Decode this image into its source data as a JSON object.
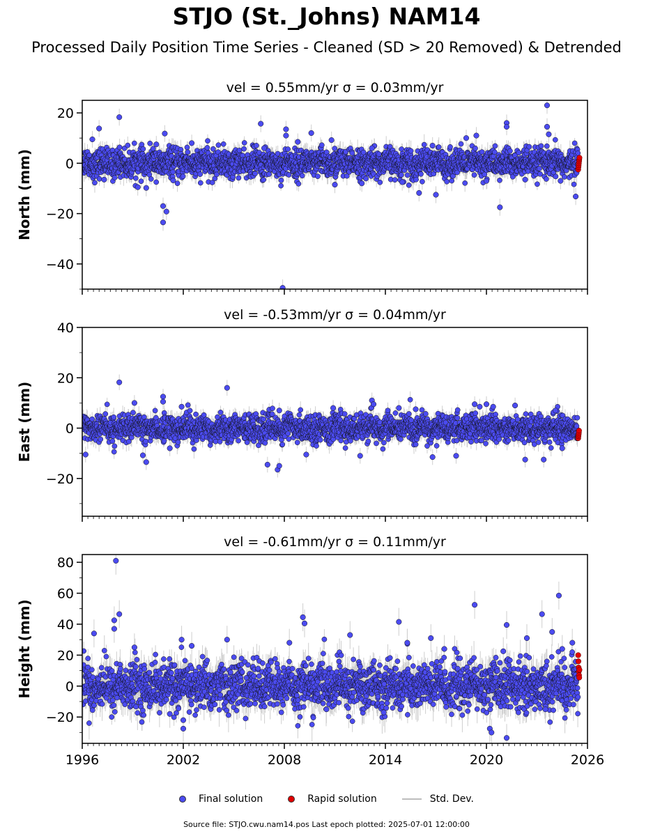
{
  "title": "STJO (St._Johns) NAM14",
  "subtitle": "Processed Daily Position Time Series - Cleaned (SD > 20 Removed) & Detrended",
  "footer": "Source file: STJO.cwu.nam14.pos  Last epoch plotted: 2025-07-01 12:00:00",
  "legend": {
    "final": "Final solution",
    "rapid": "Rapid solution",
    "std": "Std. Dev."
  },
  "colors": {
    "final": "#4b4bf0",
    "rapid": "#e00000",
    "std": "#bdbdbd"
  },
  "chart_data": [
    {
      "type": "scatter",
      "panel": "north",
      "title": "vel = 0.55mm/yr   σ = 0.03mm/yr",
      "ylabel": "North (mm)",
      "xlim": [
        1996,
        2026
      ],
      "ylim": [
        -50,
        25
      ],
      "xticks": [
        1996,
        2002,
        2008,
        2014,
        2020,
        2026
      ],
      "xticklabels": [
        "1996",
        "2002",
        "2008",
        "2014",
        "2020",
        "2026"
      ],
      "yticks": [
        20,
        0,
        -20,
        -40
      ],
      "yticklabels": [
        "20",
        "0",
        "−20",
        "−40"
      ],
      "noise_sd": 2.8,
      "outliers": [
        [
          1996.6,
          9.5
        ],
        [
          1997.0,
          13.8
        ],
        [
          1997.3,
          -6.5
        ],
        [
          1998.2,
          18.3
        ],
        [
          1999.3,
          -9.5
        ],
        [
          1999.8,
          -9.8
        ],
        [
          2000.4,
          7.5
        ],
        [
          2000.8,
          -23.5
        ],
        [
          2000.8,
          -17.0
        ],
        [
          2001.0,
          -19.2
        ],
        [
          2000.9,
          11.8
        ],
        [
          2001.4,
          -6.8
        ],
        [
          2002.5,
          8.0
        ],
        [
          2006.6,
          15.7
        ],
        [
          2006.8,
          6.0
        ],
        [
          2007.9,
          -49.5
        ],
        [
          2008.1,
          11.0
        ],
        [
          2008.1,
          13.5
        ],
        [
          2008.8,
          8.5
        ],
        [
          2009.6,
          12.0
        ],
        [
          2010.8,
          9.2
        ],
        [
          2012.6,
          -8.0
        ],
        [
          2013.2,
          6.0
        ],
        [
          2015.0,
          -7.5
        ],
        [
          2016.0,
          -11.8
        ],
        [
          2016.8,
          7.0
        ],
        [
          2017.0,
          -12.5
        ],
        [
          2019.4,
          11.0
        ],
        [
          2020.0,
          -7.0
        ],
        [
          2020.8,
          -17.5
        ],
        [
          2021.2,
          16.0
        ],
        [
          2021.2,
          14.5
        ],
        [
          2022.3,
          -6.5
        ],
        [
          2023.6,
          23.0
        ],
        [
          2023.6,
          14.5
        ],
        [
          2023.7,
          11.5
        ],
        [
          2024.4,
          -7.0
        ],
        [
          2025.3,
          -13.2
        ],
        [
          2018.8,
          10.0
        ],
        [
          2011.0,
          -8.5
        ]
      ],
      "rapid": [
        -2.5,
        -1.5,
        -0.8,
        0.0,
        0.8,
        1.5,
        2.2
      ]
    },
    {
      "type": "scatter",
      "panel": "east",
      "title": "vel = -0.53mm/yr   σ = 0.04mm/yr",
      "ylabel": "East (mm)",
      "xlim": [
        1996,
        2026
      ],
      "ylim": [
        -35,
        40
      ],
      "xticks": [
        1996,
        2002,
        2008,
        2014,
        2020,
        2026
      ],
      "xticklabels": [
        "1996",
        "2002",
        "2008",
        "2014",
        "2020",
        "2026"
      ],
      "yticks": [
        40,
        20,
        0,
        -20
      ],
      "yticklabels": [
        "40",
        "20",
        "0",
        "−20"
      ],
      "noise_sd": 2.6,
      "outliers": [
        [
          1996.2,
          -10.5
        ],
        [
          1998.2,
          18.2
        ],
        [
          1999.1,
          10.0
        ],
        [
          1999.6,
          -10.8
        ],
        [
          1999.8,
          -13.5
        ],
        [
          2000.8,
          12.5
        ],
        [
          2000.8,
          10.5
        ],
        [
          2001.2,
          -8.0
        ],
        [
          2001.9,
          8.5
        ],
        [
          2004.6,
          16.0
        ],
        [
          2007.0,
          -14.5
        ],
        [
          2007.6,
          -16.5
        ],
        [
          2007.7,
          -15.0
        ],
        [
          2007.7,
          7.0
        ],
        [
          2009.3,
          -10.5
        ],
        [
          2010.9,
          8.0
        ],
        [
          2012.5,
          -11.0
        ],
        [
          2013.2,
          11.0
        ],
        [
          2013.3,
          9.5
        ],
        [
          2014.8,
          8.0
        ],
        [
          2015.8,
          7.5
        ],
        [
          2016.8,
          -11.5
        ],
        [
          2018.2,
          -11.0
        ],
        [
          2019.3,
          9.5
        ],
        [
          2019.6,
          8.5
        ],
        [
          2020.0,
          9.5
        ],
        [
          2020.4,
          8.5
        ],
        [
          2021.7,
          9.0
        ],
        [
          2022.3,
          -12.5
        ],
        [
          2023.4,
          -12.5
        ],
        [
          2024.1,
          7.0
        ],
        [
          2024.5,
          -8.0
        ]
      ],
      "rapid": [
        -4.0,
        -3.2,
        -2.5,
        -1.8,
        -1.0
      ]
    },
    {
      "type": "scatter",
      "panel": "height",
      "title": "vel = -0.61mm/yr   σ = 0.11mm/yr",
      "ylabel": "Height (mm)",
      "xlim": [
        1996,
        2026
      ],
      "ylim": [
        -37,
        85
      ],
      "xticks": [
        1996,
        2002,
        2008,
        2014,
        2020,
        2026
      ],
      "xticklabels": [
        "1996",
        "2002",
        "2008",
        "2014",
        "2020",
        "2026"
      ],
      "yticks": [
        80,
        60,
        40,
        20,
        0,
        -20
      ],
      "yticklabels": [
        "80",
        "60",
        "40",
        "20",
        "0",
        "−20"
      ],
      "noise_sd": 7.5,
      "outliers": [
        [
          1996.7,
          34.0
        ],
        [
          1998.0,
          81.0
        ],
        [
          1997.9,
          42.5
        ],
        [
          1998.2,
          46.5
        ],
        [
          1997.9,
          37.0
        ],
        [
          1999.1,
          25.0
        ],
        [
          2001.2,
          -18.0
        ],
        [
          2001.9,
          30.0
        ],
        [
          2002.0,
          -27.5
        ],
        [
          2002.0,
          -22.0
        ],
        [
          2002.5,
          26.0
        ],
        [
          2004.6,
          30.0
        ],
        [
          2008.3,
          28.0
        ],
        [
          2009.1,
          44.5
        ],
        [
          2009.2,
          40.5
        ],
        [
          2010.5,
          -15.0
        ],
        [
          2011.9,
          33.0
        ],
        [
          2013.9,
          -17.0
        ],
        [
          2014.8,
          41.5
        ],
        [
          2015.3,
          28.0
        ],
        [
          2016.7,
          31.0
        ],
        [
          2019.3,
          52.5
        ],
        [
          2020.2,
          -27.5
        ],
        [
          2020.3,
          -30.0
        ],
        [
          2021.2,
          39.5
        ],
        [
          2021.2,
          -33.5
        ],
        [
          2021.0,
          22.5
        ],
        [
          2022.4,
          31.0
        ],
        [
          2023.3,
          46.5
        ],
        [
          2023.5,
          -15.0
        ],
        [
          2023.9,
          35.0
        ],
        [
          2024.3,
          58.5
        ],
        [
          2024.5,
          24.0
        ],
        [
          2025.1,
          28.0
        ],
        [
          2017.5,
          24.0
        ]
      ],
      "rapid": [
        20.0,
        16.0,
        12.0,
        9.5,
        7.0,
        5.5,
        10.5
      ]
    }
  ]
}
